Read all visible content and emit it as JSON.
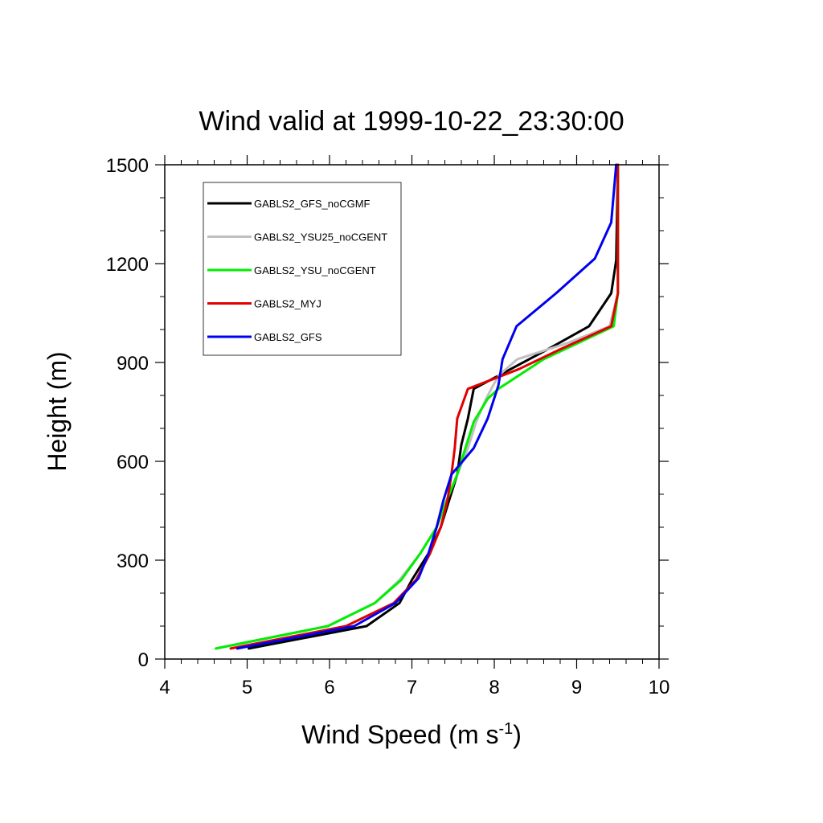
{
  "chart_data": {
    "type": "line",
    "title": "Wind valid at 1999-10-22_23:30:00",
    "xlabel": "Wind Speed (m s",
    "xlabel_sup": "-1",
    "xlabel_end": ")",
    "ylabel": "Height (m)",
    "xlim": [
      4,
      10
    ],
    "ylim": [
      0,
      1500
    ],
    "xticks": [
      "4",
      "5",
      "6",
      "7",
      "8",
      "9",
      "10"
    ],
    "yticks": [
      "0",
      "300",
      "600",
      "900",
      "1200",
      "1500"
    ],
    "grid": false,
    "legend_position": "top-left",
    "series": [
      {
        "name": "GABLS2_GFS_noCGMF",
        "color": "#000000",
        "points": [
          [
            5.02,
            32
          ],
          [
            6.45,
            100
          ],
          [
            6.85,
            170
          ],
          [
            7.0,
            240
          ],
          [
            7.2,
            320
          ],
          [
            7.35,
            400
          ],
          [
            7.45,
            480
          ],
          [
            7.55,
            560
          ],
          [
            7.6,
            650
          ],
          [
            7.68,
            730
          ],
          [
            7.75,
            820
          ],
          [
            8.2,
            880
          ],
          [
            8.65,
            940
          ],
          [
            9.15,
            1010
          ],
          [
            9.42,
            1110
          ],
          [
            9.48,
            1210
          ],
          [
            9.5,
            1500
          ]
        ]
      },
      {
        "name": "GABLS2_YSU25_noCGENT",
        "color": "#c0c0c0",
        "points": [
          [
            4.62,
            32
          ],
          [
            5.98,
            100
          ],
          [
            6.55,
            170
          ],
          [
            6.85,
            240
          ],
          [
            7.1,
            320
          ],
          [
            7.3,
            400
          ],
          [
            7.42,
            480
          ],
          [
            7.55,
            560
          ],
          [
            7.68,
            640
          ],
          [
            7.78,
            720
          ],
          [
            7.9,
            790
          ],
          [
            8.05,
            860
          ],
          [
            8.28,
            910
          ],
          [
            8.9,
            960
          ],
          [
            9.4,
            1010
          ],
          [
            9.5,
            1110
          ],
          [
            9.5,
            1500
          ]
        ]
      },
      {
        "name": "GABLS2_YSU_noCGENT",
        "color": "#00ee00",
        "points": [
          [
            4.62,
            32
          ],
          [
            5.98,
            100
          ],
          [
            6.55,
            170
          ],
          [
            6.87,
            240
          ],
          [
            7.1,
            320
          ],
          [
            7.3,
            400
          ],
          [
            7.42,
            480
          ],
          [
            7.55,
            560
          ],
          [
            7.65,
            640
          ],
          [
            7.75,
            720
          ],
          [
            7.92,
            790
          ],
          [
            8.05,
            820
          ],
          [
            8.6,
            910
          ],
          [
            9.45,
            1010
          ],
          [
            9.5,
            1110
          ],
          [
            9.5,
            1500
          ]
        ]
      },
      {
        "name": "GABLS2_MYJ",
        "color": "#e00000",
        "points": [
          [
            4.8,
            32
          ],
          [
            6.2,
            100
          ],
          [
            6.78,
            170
          ],
          [
            7.05,
            240
          ],
          [
            7.22,
            320
          ],
          [
            7.35,
            400
          ],
          [
            7.43,
            480
          ],
          [
            7.48,
            560
          ],
          [
            7.52,
            640
          ],
          [
            7.55,
            730
          ],
          [
            7.68,
            820
          ],
          [
            8.3,
            880
          ],
          [
            8.8,
            940
          ],
          [
            9.42,
            1010
          ],
          [
            9.5,
            1110
          ],
          [
            9.5,
            1500
          ]
        ]
      },
      {
        "name": "GABLS2_GFS",
        "color": "#0000ee",
        "points": [
          [
            4.88,
            32
          ],
          [
            6.3,
            100
          ],
          [
            6.8,
            170
          ],
          [
            7.08,
            245
          ],
          [
            7.2,
            320
          ],
          [
            7.3,
            400
          ],
          [
            7.38,
            480
          ],
          [
            7.48,
            560
          ],
          [
            7.75,
            640
          ],
          [
            7.92,
            730
          ],
          [
            8.05,
            830
          ],
          [
            8.1,
            910
          ],
          [
            8.27,
            1010
          ],
          [
            8.75,
            1110
          ],
          [
            9.22,
            1215
          ],
          [
            9.42,
            1325
          ],
          [
            9.48,
            1500
          ]
        ]
      }
    ]
  }
}
